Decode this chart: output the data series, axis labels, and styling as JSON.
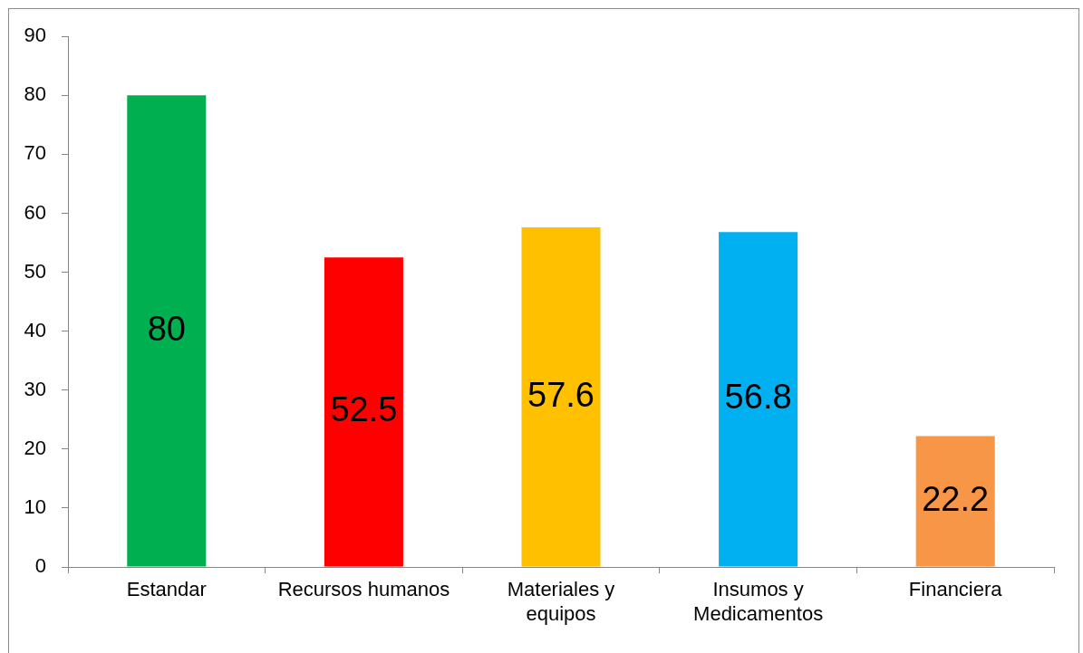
{
  "chart_data": {
    "type": "bar",
    "categories": [
      "Estandar",
      "Recursos humanos",
      "Materiales y equipos",
      "Insumos y Medicamentos",
      "Financiera"
    ],
    "values": [
      80,
      52.5,
      57.6,
      56.8,
      22.2
    ],
    "colors": [
      "#00b050",
      "#ff0000",
      "#ffc000",
      "#00b0f0",
      "#f79646"
    ],
    "ylim": [
      0,
      90
    ],
    "yticks": [
      0,
      10,
      20,
      30,
      40,
      50,
      60,
      70,
      80,
      90
    ],
    "data_labels": true,
    "legend": false
  }
}
